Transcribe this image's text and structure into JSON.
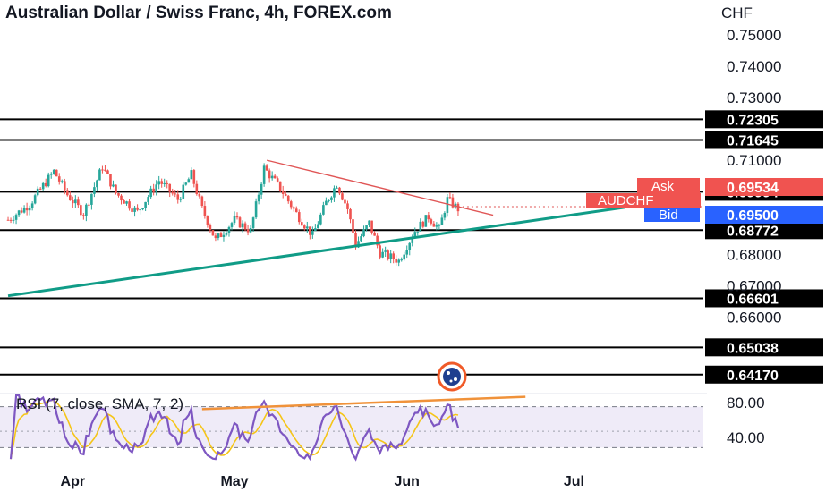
{
  "header": {
    "title": "Australian Dollar / Swiss Franc, 4h, FOREX.com"
  },
  "chart_data": {
    "type": "candlestick",
    "symbol": "AUDCHF",
    "currency_label": "CHF",
    "yaxis_ticks": [
      "0.75000",
      "0.74000",
      "0.73000",
      "0.71000",
      "0.68000",
      "0.67000",
      "0.66000"
    ],
    "price_range": [
      0.6385,
      0.7525
    ],
    "horizontal_levels": [
      {
        "label": "0.72305",
        "value": 0.72305
      },
      {
        "label": "0.71645",
        "value": 0.71645
      },
      {
        "label": "0.69994",
        "value": 0.69994
      },
      {
        "label": "0.68772",
        "value": 0.68772
      },
      {
        "label": "0.66601",
        "value": 0.66601
      },
      {
        "label": "0.65038",
        "value": 0.65038
      },
      {
        "label": "0.64170",
        "value": 0.6417
      }
    ],
    "quotes": {
      "ask_label": "Ask",
      "ask": "0.69534",
      "symbol_label": "AUDCHF",
      "bid_label": "Bid",
      "bid": "0.69500",
      "last_price": 0.6952
    },
    "trendlines": [
      {
        "name": "support",
        "color": "#109c87",
        "from": {
          "bar": 0,
          "price": 0.6668
        },
        "to": {
          "bar": 229,
          "price": 0.695
        }
      },
      {
        "name": "descending",
        "color": "#e05656",
        "from": {
          "bar": 96,
          "price": 0.71
        },
        "to": {
          "bar": 180,
          "price": 0.6925
        }
      }
    ],
    "price_path": [
      [
        0,
        0.691
      ],
      [
        8,
        0.696
      ],
      [
        17,
        0.7065
      ],
      [
        22,
        0.699
      ],
      [
        28,
        0.693
      ],
      [
        35,
        0.708
      ],
      [
        40,
        0.6995
      ],
      [
        48,
        0.6935
      ],
      [
        56,
        0.7035
      ],
      [
        63,
        0.6975
      ],
      [
        68,
        0.7055
      ],
      [
        72,
        0.6945
      ],
      [
        77,
        0.6845
      ],
      [
        84,
        0.691
      ],
      [
        90,
        0.6875
      ],
      [
        95,
        0.7075
      ],
      [
        101,
        0.701
      ],
      [
        107,
        0.693
      ],
      [
        113,
        0.686
      ],
      [
        118,
        0.6965
      ],
      [
        122,
        0.7025
      ],
      [
        126,
        0.6945
      ],
      [
        129,
        0.683
      ],
      [
        134,
        0.69
      ],
      [
        138,
        0.6805
      ],
      [
        145,
        0.678
      ],
      [
        151,
        0.6875
      ],
      [
        156,
        0.692
      ],
      [
        160,
        0.688
      ],
      [
        163,
        0.6975
      ],
      [
        167,
        0.6945
      ]
    ],
    "bar_count": 168,
    "x_range": [
      -3,
      258
    ],
    "month_ticks": [
      {
        "label": "Apr",
        "bar": 24
      },
      {
        "label": "May",
        "bar": 84
      },
      {
        "label": "Jun",
        "bar": 148
      },
      {
        "label": "Jul",
        "bar": 210
      }
    ],
    "rsi": {
      "label": "RSI (7, close, SMA, 7, 2)",
      "ticks": [
        "80.00",
        "40.00"
      ],
      "band": [
        30,
        80
      ],
      "mid": 50,
      "range": [
        14,
        96
      ],
      "trendline": {
        "color": "#f0923a",
        "from": {
          "bar": 72,
          "value": 77
        },
        "to": {
          "bar": 192,
          "value": 92
        }
      }
    }
  }
}
